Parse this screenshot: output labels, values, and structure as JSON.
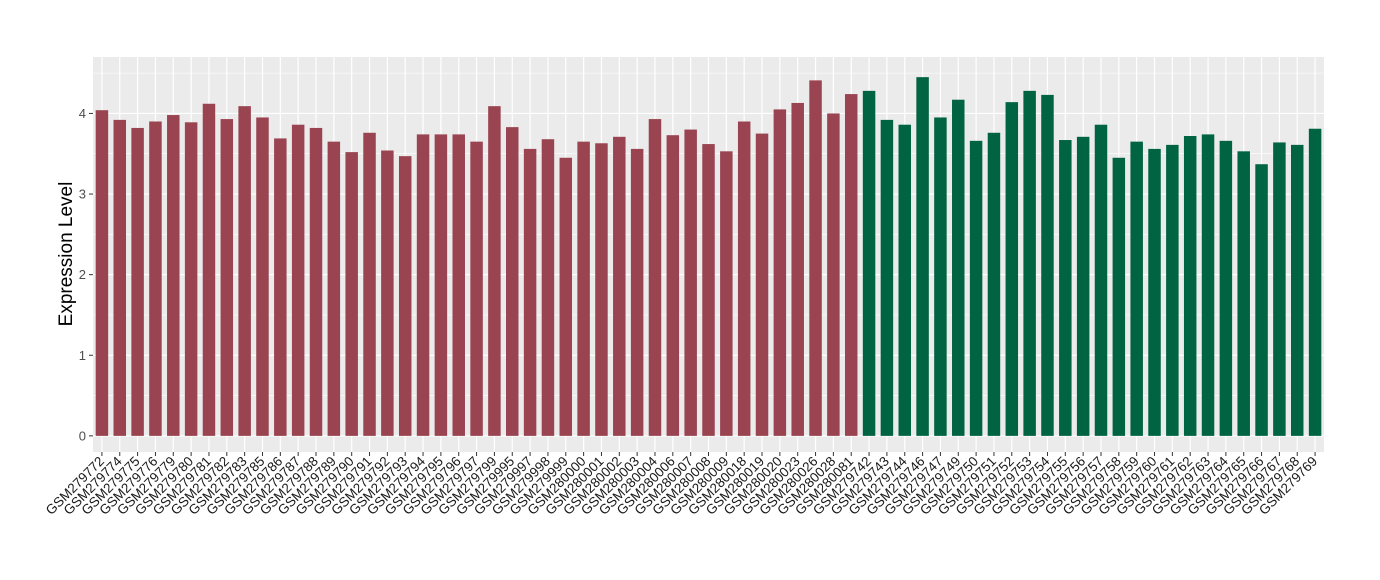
{
  "chart_data": {
    "type": "bar",
    "title": "",
    "xlabel": "",
    "ylabel": "Expression Level",
    "ylim": [
      -0.2,
      4.7
    ],
    "yticks": [
      0,
      1,
      2,
      3,
      4
    ],
    "grid": true,
    "background": "#ebebeb",
    "gridColor": "#ffffff",
    "groupColors": [
      "#994450",
      "#006442"
    ],
    "categories": [
      "GSM279772",
      "GSM279774",
      "GSM279775",
      "GSM279776",
      "GSM279779",
      "GSM279780",
      "GSM279781",
      "GSM279782",
      "GSM279783",
      "GSM279785",
      "GSM279786",
      "GSM279787",
      "GSM279788",
      "GSM279789",
      "GSM279790",
      "GSM279791",
      "GSM279792",
      "GSM279793",
      "GSM279794",
      "GSM279795",
      "GSM279796",
      "GSM279797",
      "GSM279799",
      "GSM279995",
      "GSM279997",
      "GSM279998",
      "GSM279999",
      "GSM280000",
      "GSM280001",
      "GSM280002",
      "GSM280003",
      "GSM280004",
      "GSM280006",
      "GSM280007",
      "GSM280008",
      "GSM280009",
      "GSM280018",
      "GSM280019",
      "GSM280020",
      "GSM280023",
      "GSM280026",
      "GSM280028",
      "GSM280081",
      "GSM279742",
      "GSM279743",
      "GSM279744",
      "GSM279746",
      "GSM279747",
      "GSM279749",
      "GSM279750",
      "GSM279751",
      "GSM279752",
      "GSM279753",
      "GSM279754",
      "GSM279755",
      "GSM279756",
      "GSM279757",
      "GSM279758",
      "GSM279759",
      "GSM279760",
      "GSM279761",
      "GSM279762",
      "GSM279763",
      "GSM279764",
      "GSM279765",
      "GSM279766",
      "GSM279767",
      "GSM279768",
      "GSM279769"
    ],
    "values": [
      4.04,
      3.92,
      3.82,
      3.9,
      3.98,
      3.89,
      4.12,
      3.93,
      4.09,
      3.95,
      3.69,
      3.86,
      3.82,
      3.65,
      3.52,
      3.76,
      3.54,
      3.47,
      3.74,
      3.74,
      3.74,
      3.65,
      4.09,
      3.83,
      3.56,
      3.68,
      3.45,
      3.65,
      3.63,
      3.71,
      3.56,
      3.93,
      3.73,
      3.8,
      3.62,
      3.53,
      3.9,
      3.75,
      4.05,
      4.13,
      4.41,
      4.0,
      4.24,
      4.28,
      3.92,
      3.86,
      4.45,
      3.95,
      4.17,
      3.66,
      3.76,
      4.14,
      4.28,
      4.23,
      3.67,
      3.71,
      3.86,
      3.45,
      3.65,
      3.56,
      3.61,
      3.72,
      3.74,
      3.66,
      3.53,
      3.37,
      3.64,
      3.61,
      3.81
    ],
    "groups": [
      0,
      0,
      0,
      0,
      0,
      0,
      0,
      0,
      0,
      0,
      0,
      0,
      0,
      0,
      0,
      0,
      0,
      0,
      0,
      0,
      0,
      0,
      0,
      0,
      0,
      0,
      0,
      0,
      0,
      0,
      0,
      0,
      0,
      0,
      0,
      0,
      0,
      0,
      0,
      0,
      0,
      0,
      0,
      1,
      1,
      1,
      1,
      1,
      1,
      1,
      1,
      1,
      1,
      1,
      1,
      1,
      1,
      1,
      1,
      1,
      1,
      1,
      1,
      1,
      1,
      1,
      1,
      1,
      1
    ]
  }
}
